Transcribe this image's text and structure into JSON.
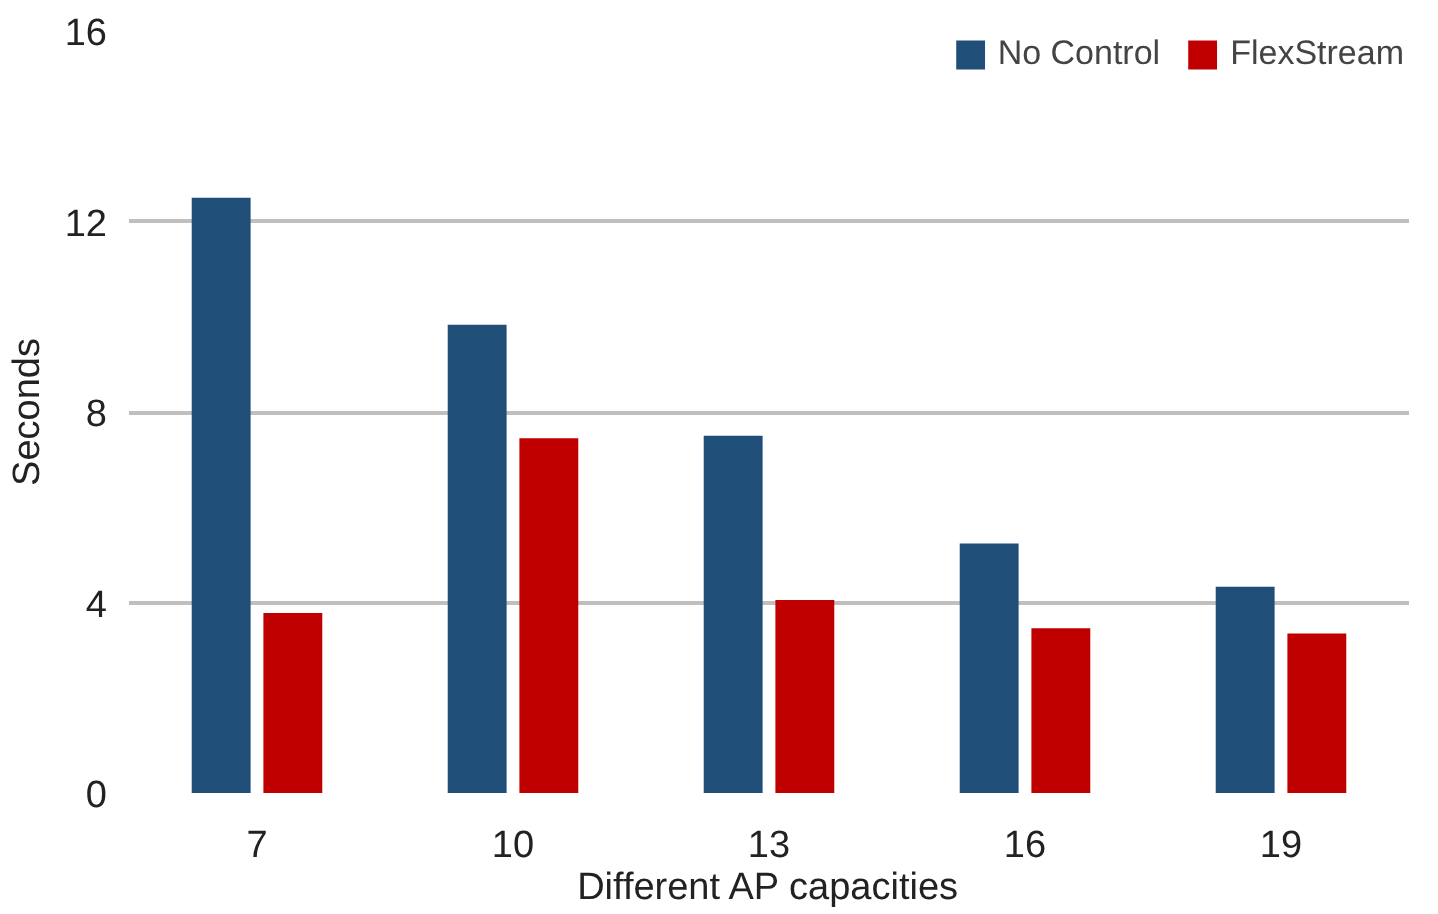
{
  "chart_data": {
    "type": "bar",
    "xlabel": "Different AP capacities",
    "ylabel": "Seconds",
    "categories": [
      "7",
      "10",
      "13",
      "16",
      "19"
    ],
    "series": [
      {
        "name": "No Control",
        "color": "#1f4e79",
        "values": [
          12.5,
          9.83,
          7.5,
          5.24,
          4.33
        ]
      },
      {
        "name": "FlexStream",
        "color": "#c00000",
        "values": [
          3.78,
          7.45,
          4.05,
          3.46,
          3.35
        ]
      }
    ],
    "ylim": [
      0,
      16
    ],
    "yticks": [
      0,
      4,
      8,
      12,
      16
    ],
    "grid": "y",
    "legend": "top right"
  }
}
